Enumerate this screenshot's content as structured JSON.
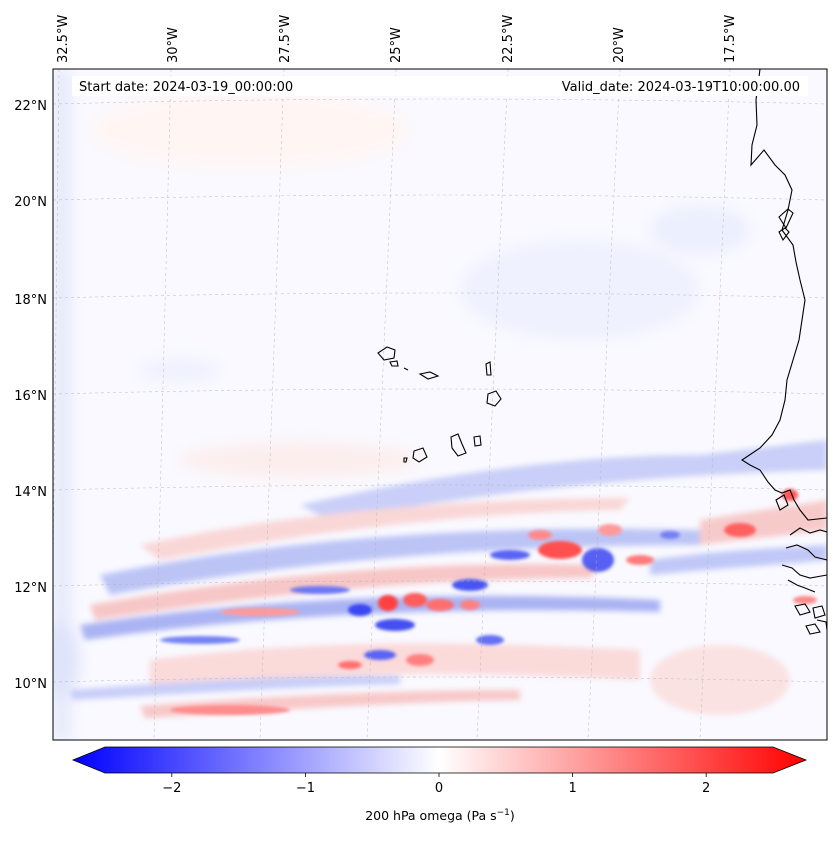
{
  "header": {
    "start_date": "Start date: 2024-03-19_00:00:00",
    "valid_date": "Valid_date: 2024-03-19T10:00:00.00"
  },
  "map": {
    "lon_labels": [
      "32.5°W",
      "30°W",
      "27.5°W",
      "25°W",
      "22.5°W",
      "20°W",
      "17.5°W"
    ],
    "lat_labels": [
      "22°N",
      "20°N",
      "18°N",
      "16°N",
      "14°N",
      "12°N",
      "10°N"
    ],
    "gridlines": "dashed",
    "colormap": "bwr",
    "colors": {
      "negative": "#0000ff",
      "zero": "#ffffff",
      "positive": "#ff0000"
    }
  },
  "colorbar": {
    "ticks": [
      "−2",
      "−1",
      "0",
      "1",
      "2"
    ],
    "tick_values": [
      -2,
      -1,
      0,
      1,
      2
    ],
    "range": [
      -2.5,
      2.5
    ],
    "label_main": "200 hPa omega (Pa s",
    "label_exp": "−1",
    "label_end": ")"
  }
}
